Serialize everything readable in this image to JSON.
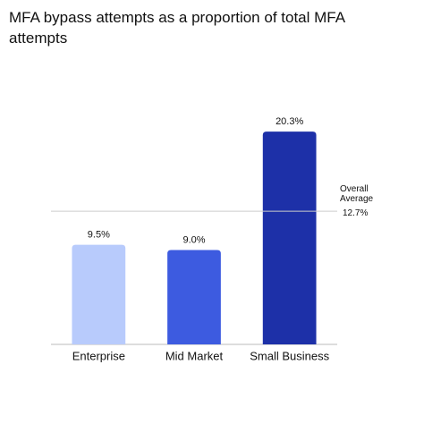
{
  "chart_data": {
    "type": "bar",
    "title": "MFA bypass attempts as a proportion of total MFA attempts",
    "categories": [
      "Enterprise",
      "Mid Market",
      "Small Business"
    ],
    "values": [
      9.5,
      9.0,
      20.3
    ],
    "value_labels": [
      "9.5%",
      "9.0%",
      "20.3%"
    ],
    "colors": [
      "#b8cbfc",
      "#3d5be0",
      "#1d30a8"
    ],
    "ylim": [
      0,
      25
    ],
    "reference_line": {
      "label": "Overall Average",
      "value": 12.7,
      "value_label": "12.7%"
    }
  }
}
